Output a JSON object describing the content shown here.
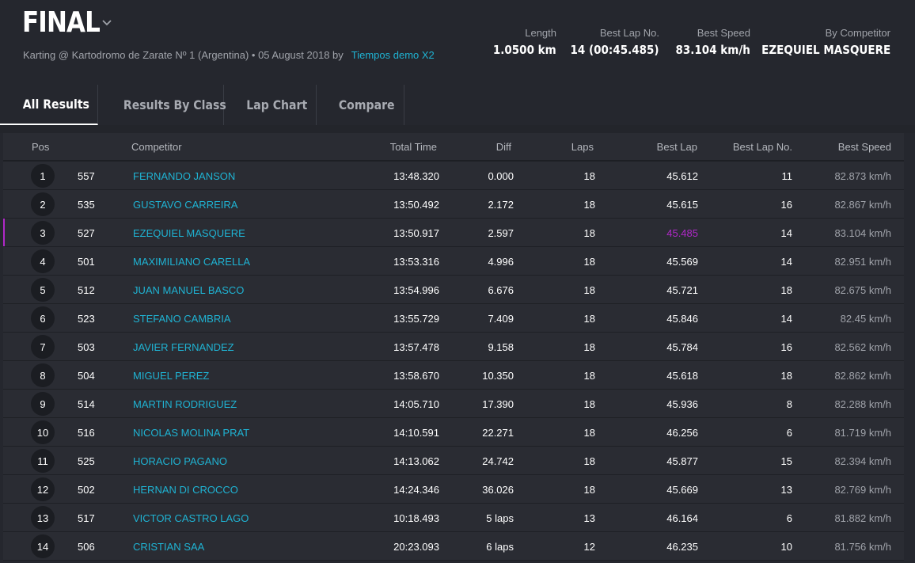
{
  "header": {
    "title": "FINAL",
    "subtitle": "Karting @ Kartodromo de Zarate Nº 1 (Argentina) • 05 August 2018 by",
    "organizer_link": "Tiempos demo X2",
    "stats": [
      {
        "label": "Length",
        "value": "1.0500 km"
      },
      {
        "label": "Best Lap No.",
        "value": "14 (00:45.485)"
      },
      {
        "label": "Best Speed",
        "value": "83.104 km/h"
      },
      {
        "label": "By Competitor",
        "value": "EZEQUIEL MASQUERE"
      }
    ]
  },
  "tabs": [
    {
      "label": "All Results",
      "active": true
    },
    {
      "label": "Results By Class",
      "active": false
    },
    {
      "label": "Lap Chart",
      "active": false
    },
    {
      "label": "Compare",
      "active": false
    }
  ],
  "table": {
    "columns": {
      "pos": "Pos",
      "competitor": "Competitor",
      "total_time": "Total Time",
      "diff": "Diff",
      "laps": "Laps",
      "best_lap": "Best Lap",
      "best_lap_no": "Best Lap No.",
      "best_speed": "Best Speed"
    },
    "rows": [
      {
        "pos": "1",
        "num": "557",
        "name": "FERNANDO JANSON",
        "total": "13:48.320",
        "diff": "0.000",
        "laps": "18",
        "best": "45.612",
        "best_no": "11",
        "speed": "82.873 km/h"
      },
      {
        "pos": "2",
        "num": "535",
        "name": "GUSTAVO CARREIRA",
        "total": "13:50.492",
        "diff": "2.172",
        "laps": "18",
        "best": "45.615",
        "best_no": "16",
        "speed": "82.867 km/h"
      },
      {
        "pos": "3",
        "num": "527",
        "name": "EZEQUIEL MASQUERE",
        "total": "13:50.917",
        "diff": "2.597",
        "laps": "18",
        "best": "45.485",
        "best_no": "14",
        "speed": "83.104 km/h"
      },
      {
        "pos": "4",
        "num": "501",
        "name": "MAXIMILIANO CARELLA",
        "total": "13:53.316",
        "diff": "4.996",
        "laps": "18",
        "best": "45.569",
        "best_no": "14",
        "speed": "82.951 km/h"
      },
      {
        "pos": "5",
        "num": "512",
        "name": "JUAN MANUEL BASCO",
        "total": "13:54.996",
        "diff": "6.676",
        "laps": "18",
        "best": "45.721",
        "best_no": "18",
        "speed": "82.675 km/h"
      },
      {
        "pos": "6",
        "num": "523",
        "name": "STEFANO CAMBRIA",
        "total": "13:55.729",
        "diff": "7.409",
        "laps": "18",
        "best": "45.846",
        "best_no": "14",
        "speed": "82.45 km/h"
      },
      {
        "pos": "7",
        "num": "503",
        "name": "JAVIER FERNANDEZ",
        "total": "13:57.478",
        "diff": "9.158",
        "laps": "18",
        "best": "45.784",
        "best_no": "16",
        "speed": "82.562 km/h"
      },
      {
        "pos": "8",
        "num": "504",
        "name": "MIGUEL PEREZ",
        "total": "13:58.670",
        "diff": "10.350",
        "laps": "18",
        "best": "45.618",
        "best_no": "18",
        "speed": "82.862 km/h"
      },
      {
        "pos": "9",
        "num": "514",
        "name": "MARTIN RODRIGUEZ",
        "total": "14:05.710",
        "diff": "17.390",
        "laps": "18",
        "best": "45.936",
        "best_no": "8",
        "speed": "82.288 km/h"
      },
      {
        "pos": "10",
        "num": "516",
        "name": "NICOLAS MOLINA PRAT",
        "total": "14:10.591",
        "diff": "22.271",
        "laps": "18",
        "best": "46.256",
        "best_no": "6",
        "speed": "81.719 km/h"
      },
      {
        "pos": "11",
        "num": "525",
        "name": "HORACIO PAGANO",
        "total": "14:13.062",
        "diff": "24.742",
        "laps": "18",
        "best": "45.877",
        "best_no": "15",
        "speed": "82.394 km/h"
      },
      {
        "pos": "12",
        "num": "502",
        "name": "HERNAN DI CROCCO",
        "total": "14:24.346",
        "diff": "36.026",
        "laps": "18",
        "best": "45.669",
        "best_no": "13",
        "speed": "82.769 km/h"
      },
      {
        "pos": "13",
        "num": "517",
        "name": "VICTOR CASTRO LAGO",
        "total": "10:18.493",
        "diff": "5 laps",
        "laps": "13",
        "best": "46.164",
        "best_no": "6",
        "speed": "81.882 km/h"
      },
      {
        "pos": "14",
        "num": "506",
        "name": "CRISTIAN SAA",
        "total": "20:23.093",
        "diff": "6 laps",
        "laps": "12",
        "best": "46.235",
        "best_no": "10",
        "speed": "81.756 km/h"
      }
    ]
  },
  "colors": {
    "background": "#25272e",
    "accent_link": "#1fb3d3",
    "best_lap_highlight": "#b028c8"
  }
}
